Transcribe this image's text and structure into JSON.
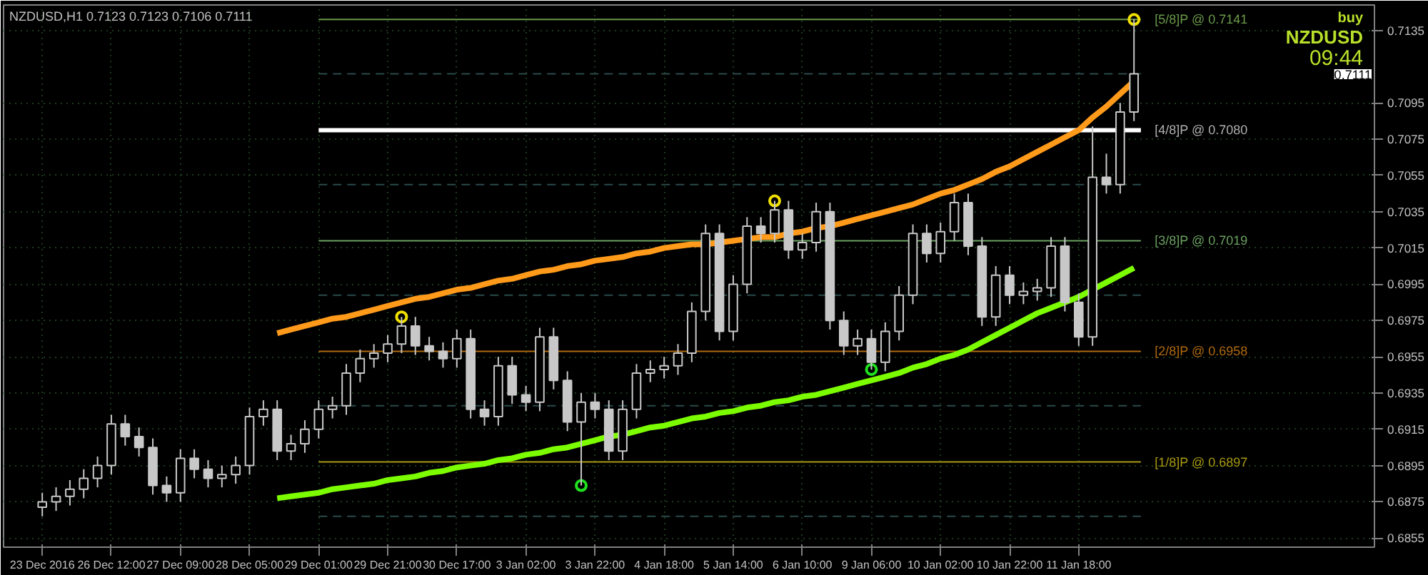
{
  "chart_data": {
    "type": "candlestick",
    "title": "NZDUSD,H1  0.7123 0.7123 0.7106 0.7111",
    "categories": [
      "23 Dec 2016",
      null,
      null,
      null,
      null,
      "26 Dec 12:00",
      null,
      null,
      null,
      null,
      "27 Dec 09:00",
      null,
      null,
      null,
      null,
      "28 Dec 05:00",
      null,
      null,
      null,
      null,
      "29 Dec 01:00",
      null,
      null,
      null,
      null,
      "29 Dec 21:00",
      null,
      null,
      null,
      null,
      "30 Dec 17:00",
      null,
      null,
      null,
      null,
      "3 Jan 02:00",
      null,
      null,
      null,
      null,
      "3 Jan 22:00",
      null,
      null,
      null,
      null,
      "4 Jan 18:00",
      null,
      null,
      null,
      null,
      "5 Jan 14:00",
      null,
      null,
      null,
      null,
      "6 Jan 10:00",
      null,
      null,
      null,
      null,
      "9 Jan 06:00",
      null,
      null,
      null,
      null,
      "10 Jan 02:00",
      null,
      null,
      null,
      null,
      "10 Jan 22:00",
      null,
      null,
      null,
      null,
      "11 Jan 18:00",
      null,
      null,
      null,
      null
    ],
    "ohlc": [
      [
        0.6872,
        0.688,
        0.6867,
        0.6875
      ],
      [
        0.6875,
        0.6883,
        0.687,
        0.6878
      ],
      [
        0.6878,
        0.6887,
        0.6873,
        0.6882
      ],
      [
        0.6882,
        0.6893,
        0.6877,
        0.6888
      ],
      [
        0.6888,
        0.69,
        0.6883,
        0.6895
      ],
      [
        0.6895,
        0.6923,
        0.689,
        0.6918
      ],
      [
        0.6918,
        0.6923,
        0.6906,
        0.6911
      ],
      [
        0.6911,
        0.6916,
        0.69,
        0.6905
      ],
      [
        0.6905,
        0.691,
        0.6879,
        0.6884
      ],
      [
        0.6884,
        0.6889,
        0.6875,
        0.688
      ],
      [
        0.688,
        0.6904,
        0.6875,
        0.6899
      ],
      [
        0.6899,
        0.6904,
        0.6888,
        0.6893
      ],
      [
        0.6893,
        0.6898,
        0.6883,
        0.6888
      ],
      [
        0.6888,
        0.6895,
        0.6883,
        0.689
      ],
      [
        0.689,
        0.69,
        0.6885,
        0.6895
      ],
      [
        0.6895,
        0.6927,
        0.689,
        0.6922
      ],
      [
        0.6922,
        0.6931,
        0.6917,
        0.6926
      ],
      [
        0.6926,
        0.6931,
        0.6898,
        0.6903
      ],
      [
        0.6903,
        0.6912,
        0.6898,
        0.6907
      ],
      [
        0.6907,
        0.692,
        0.6902,
        0.6915
      ],
      [
        0.6915,
        0.6931,
        0.691,
        0.6926
      ],
      [
        0.6926,
        0.6933,
        0.6921,
        0.6928
      ],
      [
        0.6928,
        0.6951,
        0.6923,
        0.6946
      ],
      [
        0.6946,
        0.6959,
        0.6941,
        0.6954
      ],
      [
        0.6954,
        0.6962,
        0.6949,
        0.6957
      ],
      [
        0.6957,
        0.6967,
        0.6952,
        0.6962
      ],
      [
        0.6962,
        0.6977,
        0.6957,
        0.6972
      ],
      [
        0.6972,
        0.6977,
        0.6956,
        0.6961
      ],
      [
        0.6961,
        0.6966,
        0.6953,
        0.6958
      ],
      [
        0.6958,
        0.6963,
        0.6949,
        0.6954
      ],
      [
        0.6954,
        0.697,
        0.6949,
        0.6965
      ],
      [
        0.6965,
        0.697,
        0.6921,
        0.6926
      ],
      [
        0.6926,
        0.6931,
        0.6917,
        0.6922
      ],
      [
        0.6922,
        0.6955,
        0.6917,
        0.695
      ],
      [
        0.695,
        0.6955,
        0.6929,
        0.6934
      ],
      [
        0.6934,
        0.6939,
        0.6925,
        0.693
      ],
      [
        0.693,
        0.6971,
        0.6925,
        0.6966
      ],
      [
        0.6966,
        0.6971,
        0.6937,
        0.6942
      ],
      [
        0.6942,
        0.6947,
        0.6914,
        0.6919
      ],
      [
        0.6919,
        0.6935,
        0.6884,
        0.693
      ],
      [
        0.693,
        0.6935,
        0.6921,
        0.6926
      ],
      [
        0.6926,
        0.6931,
        0.6898,
        0.6903
      ],
      [
        0.6903,
        0.6931,
        0.6898,
        0.6926
      ],
      [
        0.6926,
        0.6951,
        0.6921,
        0.6946
      ],
      [
        0.6946,
        0.6953,
        0.6941,
        0.6948
      ],
      [
        0.6948,
        0.6955,
        0.6943,
        0.695
      ],
      [
        0.695,
        0.6962,
        0.6945,
        0.6957
      ],
      [
        0.6957,
        0.6985,
        0.6952,
        0.698
      ],
      [
        0.698,
        0.7028,
        0.6975,
        0.7023
      ],
      [
        0.7023,
        0.7028,
        0.6964,
        0.6969
      ],
      [
        0.6969,
        0.7,
        0.6964,
        0.6995
      ],
      [
        0.6995,
        0.7032,
        0.699,
        0.7027
      ],
      [
        0.7027,
        0.7032,
        0.7018,
        0.7023
      ],
      [
        0.7023,
        0.7041,
        0.7018,
        0.7036
      ],
      [
        0.7036,
        0.7041,
        0.7009,
        0.7014
      ],
      [
        0.7014,
        0.7023,
        0.7009,
        0.7018
      ],
      [
        0.7018,
        0.704,
        0.7013,
        0.7035
      ],
      [
        0.7035,
        0.704,
        0.697,
        0.6975
      ],
      [
        0.6975,
        0.698,
        0.6956,
        0.6961
      ],
      [
        0.6961,
        0.697,
        0.6956,
        0.6965
      ],
      [
        0.6965,
        0.697,
        0.6948,
        0.6952
      ],
      [
        0.6952,
        0.6974,
        0.6947,
        0.6969
      ],
      [
        0.6969,
        0.6994,
        0.6964,
        0.6989
      ],
      [
        0.6989,
        0.7028,
        0.6984,
        0.7023
      ],
      [
        0.7023,
        0.7028,
        0.7007,
        0.7012
      ],
      [
        0.7012,
        0.7029,
        0.7007,
        0.7024
      ],
      [
        0.7024,
        0.7045,
        0.7019,
        0.704
      ],
      [
        0.704,
        0.7045,
        0.7011,
        0.7016
      ],
      [
        0.7016,
        0.7021,
        0.6972,
        0.6977
      ],
      [
        0.6977,
        0.7005,
        0.6972,
        0.7
      ],
      [
        0.7,
        0.7005,
        0.6984,
        0.6989
      ],
      [
        0.6989,
        0.6996,
        0.6984,
        0.6991
      ],
      [
        0.6991,
        0.6998,
        0.6986,
        0.6993
      ],
      [
        0.6993,
        0.7021,
        0.6988,
        0.7016
      ],
      [
        0.7016,
        0.7021,
        0.698,
        0.6985
      ],
      [
        0.6985,
        0.699,
        0.6961,
        0.6966
      ],
      [
        0.6966,
        0.7082,
        0.6961,
        0.7054
      ],
      [
        0.7054,
        0.7067,
        0.7045,
        0.705
      ],
      [
        0.705,
        0.7095,
        0.7045,
        0.709
      ],
      [
        0.709,
        0.7141,
        0.7085,
        0.7111
      ]
    ],
    "color": "#c8c8c8",
    "series": [
      {
        "type": "line",
        "color": "#ff9a1a",
        "values": [
          null,
          null,
          null,
          null,
          null,
          null,
          null,
          null,
          null,
          null,
          null,
          null,
          null,
          null,
          null,
          null,
          null,
          0.6968,
          0.697,
          0.6972,
          0.6974,
          0.6976,
          0.6977,
          0.6979,
          0.6981,
          0.6983,
          0.6985,
          0.6987,
          0.6988,
          0.699,
          0.6992,
          0.6993,
          0.6995,
          0.6997,
          0.6998,
          0.7,
          0.7002,
          0.7003,
          0.7005,
          0.7006,
          0.7008,
          0.7009,
          0.701,
          0.7012,
          0.7013,
          0.7015,
          0.7016,
          0.7017,
          0.7017,
          0.7018,
          0.7019,
          0.702,
          0.7021,
          0.7021,
          0.7023,
          0.7024,
          0.7026,
          0.7027,
          0.7029,
          0.7031,
          0.7033,
          0.7035,
          0.7037,
          0.7039,
          0.7042,
          0.7045,
          0.7047,
          0.705,
          0.7053,
          0.7057,
          0.706,
          0.7064,
          0.7068,
          0.7072,
          0.7076,
          0.708,
          0.7087,
          0.7093,
          0.71,
          0.7107
        ]
      },
      {
        "type": "line",
        "color": "#7cfc00",
        "values": [
          null,
          null,
          null,
          null,
          null,
          null,
          null,
          null,
          null,
          null,
          null,
          null,
          null,
          null,
          null,
          null,
          null,
          0.6877,
          0.6878,
          0.6879,
          0.688,
          0.6882,
          0.6883,
          0.6884,
          0.6885,
          0.6887,
          0.6888,
          0.6889,
          0.6891,
          0.6892,
          0.6894,
          0.6895,
          0.6896,
          0.6898,
          0.6899,
          0.6901,
          0.6902,
          0.6904,
          0.6905,
          0.6907,
          0.6909,
          0.6911,
          0.6912,
          0.6914,
          0.6916,
          0.6917,
          0.6919,
          0.6921,
          0.6922,
          0.6924,
          0.6925,
          0.6927,
          0.6928,
          0.693,
          0.6931,
          0.6933,
          0.6934,
          0.6936,
          0.6938,
          0.694,
          0.6942,
          0.6944,
          0.6946,
          0.6949,
          0.6951,
          0.6954,
          0.6956,
          0.6959,
          0.6963,
          0.6967,
          0.6971,
          0.6975,
          0.6979,
          0.6982,
          0.6985,
          0.6988,
          0.6992,
          0.6996,
          0.7,
          0.7004
        ]
      },
      {
        "type": "scatter",
        "color": "#f0e000",
        "values": [
          null,
          null,
          null,
          null,
          null,
          null,
          null,
          null,
          null,
          null,
          null,
          null,
          null,
          null,
          null,
          null,
          null,
          null,
          null,
          null,
          null,
          null,
          null,
          null,
          null,
          null,
          0.6977,
          null,
          null,
          null,
          null,
          null,
          null,
          null,
          null,
          null,
          null,
          null,
          null,
          null,
          null,
          null,
          null,
          null,
          null,
          null,
          null,
          null,
          null,
          null,
          null,
          null,
          null,
          0.7041,
          null,
          null,
          null,
          null,
          null,
          null,
          null,
          null,
          null,
          null,
          null,
          null,
          null,
          null,
          null,
          null,
          null,
          null,
          null,
          null,
          null,
          null,
          null,
          null,
          null,
          0.7141
        ]
      },
      {
        "type": "scatter",
        "color": "#20e020",
        "values": [
          null,
          null,
          null,
          null,
          null,
          null,
          null,
          null,
          null,
          null,
          null,
          null,
          null,
          null,
          null,
          null,
          null,
          null,
          null,
          null,
          null,
          null,
          null,
          null,
          null,
          null,
          null,
          null,
          null,
          null,
          null,
          null,
          null,
          null,
          null,
          null,
          null,
          null,
          null,
          0.6884,
          null,
          null,
          null,
          null,
          null,
          null,
          null,
          null,
          null,
          null,
          null,
          null,
          null,
          null,
          null,
          null,
          null,
          null,
          null,
          null,
          0.6948,
          null,
          null,
          null,
          null,
          null,
          null,
          null,
          null,
          null,
          null,
          null,
          null,
          null,
          null,
          null,
          null,
          null,
          null,
          null
        ]
      }
    ],
    "ref_lines": [
      {
        "axis": "y",
        "value": 0.7141,
        "label": "[5/8]P @ 0.7141",
        "color": "#6a9a4a",
        "line_style": "solid"
      },
      {
        "axis": "y",
        "value": 0.7111,
        "label": null,
        "color": "#2a4a4a",
        "line_style": "dashed"
      },
      {
        "axis": "y",
        "value": 0.708,
        "label": "[4/8]P @ 0.7080",
        "color": "#ffffff",
        "line_style": "solid"
      },
      {
        "axis": "y",
        "value": 0.705,
        "label": null,
        "color": "#2a4a4a",
        "line_style": "dashed"
      },
      {
        "axis": "y",
        "value": 0.7019,
        "label": "[3/8]P @ 0.7019",
        "color": "#6aa060",
        "line_style": "solid"
      },
      {
        "axis": "y",
        "value": 0.6989,
        "label": null,
        "color": "#2a4a4a",
        "line_style": "dashed"
      },
      {
        "axis": "y",
        "value": 0.6958,
        "label": "[2/8]P @ 0.6958",
        "color": "#b06a10",
        "line_style": "solid"
      },
      {
        "axis": "y",
        "value": 0.6928,
        "label": null,
        "color": "#2a4a4a",
        "line_style": "dashed"
      },
      {
        "axis": "y",
        "value": 0.6897,
        "label": "[1/8]P @ 0.6897",
        "color": "#a89a10",
        "line_style": "solid"
      },
      {
        "axis": "y",
        "value": 0.6867,
        "label": null,
        "color": "#2a4a4a",
        "line_style": "dashed"
      }
    ],
    "annotations": [
      "buy",
      "NZDUSD",
      "09:44",
      "0.7111"
    ],
    "ylim": [
      0.685,
      0.7149
    ],
    "yticks": [
      0.6855,
      0.6875,
      0.6895,
      0.6915,
      0.6935,
      0.6955,
      0.6975,
      0.6995,
      0.7015,
      0.7035,
      0.7055,
      0.7075,
      0.7095,
      0.7135
    ],
    "grid": true
  }
}
